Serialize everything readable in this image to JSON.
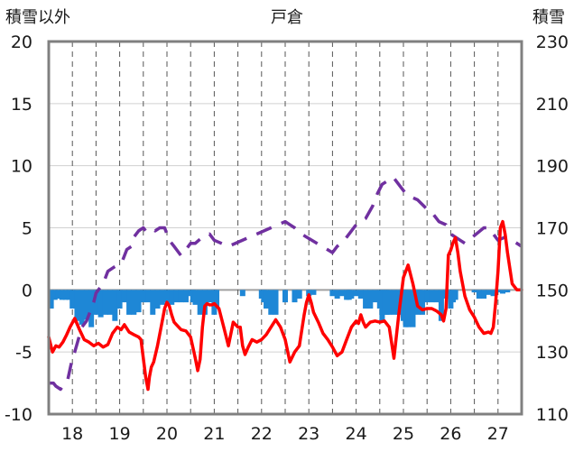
{
  "chart_data": {
    "type": "line",
    "title": "戸倉",
    "ylabel_left": "積雪以外",
    "ylabel_right": "積雪",
    "x_ticks": [
      "18",
      "19",
      "20",
      "21",
      "22",
      "23",
      "24",
      "25",
      "26",
      "27"
    ],
    "xlim": [
      17.5,
      27.5
    ],
    "ylim_left": [
      -10,
      20
    ],
    "ylim_right": [
      110,
      230
    ],
    "y_ticks_left": [
      "-10",
      "-5",
      "0",
      "5",
      "10",
      "15",
      "20"
    ],
    "y_ticks_right": [
      "110",
      "130",
      "150",
      "170",
      "190",
      "210",
      "230"
    ],
    "grid": {
      "vertical": "dashed",
      "horizontal": "solid",
      "day_boundaries": "dashed"
    },
    "colors": {
      "temperature": "#ff0000",
      "snow_depth": "#7030a0",
      "precipitation": "#1e87d6",
      "zero_line": "#a0a0a0",
      "frame": "#808080"
    },
    "series": [
      {
        "axis": "left",
        "style": "line",
        "x": [
          17.5,
          17.58,
          17.65,
          17.72,
          17.8,
          17.88,
          17.95,
          18.05,
          18.15,
          18.25,
          18.35,
          18.45,
          18.55,
          18.65,
          18.75,
          18.85,
          18.95,
          19.03,
          19.1,
          19.2,
          19.3,
          19.4,
          19.45,
          19.5,
          19.55,
          19.6,
          19.63,
          19.67,
          19.72,
          19.8,
          19.9,
          19.95,
          20.0,
          20.05,
          20.1,
          20.15,
          20.2,
          20.3,
          20.4,
          20.5,
          20.6,
          20.65,
          20.7,
          20.75,
          20.8,
          20.85,
          20.9,
          20.95,
          21.0,
          21.1,
          21.2,
          21.3,
          21.4,
          21.5,
          21.55,
          21.6,
          21.65,
          21.72,
          21.8,
          21.9,
          22.0,
          22.1,
          22.2,
          22.3,
          22.4,
          22.5,
          22.6,
          22.7,
          22.8,
          22.9,
          22.95,
          23.0,
          23.05,
          23.1,
          23.2,
          23.3,
          23.4,
          23.5,
          23.6,
          23.7,
          23.8,
          23.9,
          24.0,
          24.05,
          24.1,
          24.15,
          24.2,
          24.3,
          24.4,
          24.5,
          24.6,
          24.7,
          24.8,
          24.9,
          25.0,
          25.1,
          25.2,
          25.3,
          25.4,
          25.5,
          25.6,
          25.7,
          25.8,
          25.85,
          25.9,
          25.95,
          26.0,
          26.05,
          26.1,
          26.15,
          26.2,
          26.3,
          26.4,
          26.5,
          26.6,
          26.7,
          26.8,
          26.85,
          26.9,
          26.95,
          27.0,
          27.05,
          27.1,
          27.15,
          27.2,
          27.3,
          27.4,
          27.5
        ],
        "y": [
          -3.8,
          -5.0,
          -4.5,
          -4.6,
          -4.2,
          -3.6,
          -3.0,
          -2.3,
          -3.2,
          -4.0,
          -4.2,
          -4.5,
          -4.3,
          -4.6,
          -4.4,
          -3.5,
          -3.0,
          -3.2,
          -2.8,
          -3.4,
          -3.6,
          -3.8,
          -4.0,
          -5.5,
          -7.0,
          -8.0,
          -7.0,
          -6.2,
          -5.8,
          -4.5,
          -2.5,
          -1.5,
          -1.0,
          -1.3,
          -2.0,
          -2.6,
          -2.8,
          -3.2,
          -3.3,
          -3.8,
          -5.5,
          -6.5,
          -5.6,
          -3.0,
          -1.3,
          -1.1,
          -1.2,
          -1.2,
          -1.1,
          -1.5,
          -3.0,
          -4.5,
          -2.6,
          -3.0,
          -3.0,
          -4.5,
          -5.2,
          -4.6,
          -4.0,
          -4.2,
          -4.0,
          -3.6,
          -3.0,
          -2.4,
          -3.0,
          -4.0,
          -5.8,
          -5.0,
          -4.5,
          -2.0,
          -1.0,
          -0.4,
          -1.0,
          -1.8,
          -2.6,
          -3.5,
          -4.0,
          -4.6,
          -5.3,
          -5.0,
          -4.0,
          -3.0,
          -2.5,
          -2.7,
          -2.0,
          -2.6,
          -3.0,
          -2.6,
          -2.5,
          -2.6,
          -2.5,
          -3.0,
          -5.5,
          -2.0,
          1.0,
          2.0,
          0.5,
          -1.3,
          -1.6,
          -1.5,
          -1.5,
          -1.7,
          -2.0,
          -2.5,
          -1.5,
          2.8,
          3.2,
          3.8,
          4.2,
          3.0,
          1.5,
          -0.5,
          -1.6,
          -2.2,
          -3.0,
          -3.5,
          -3.4,
          -3.5,
          -3.0,
          -1.0,
          1.5,
          5.0,
          5.5,
          4.5,
          3.0,
          0.5,
          0.0,
          0.0
        ]
      },
      {
        "axis": "right",
        "style": "dashed",
        "x": [
          17.5,
          17.6,
          17.65,
          17.75,
          17.85,
          17.9,
          18.0,
          18.05,
          18.2,
          18.3,
          18.45,
          18.5,
          18.55,
          18.65,
          18.75,
          18.85,
          18.95,
          19.05,
          19.15,
          19.25,
          19.3,
          19.4,
          19.5,
          19.55,
          19.65,
          19.75,
          19.85,
          19.95,
          20.05,
          20.15,
          20.3,
          20.5,
          20.6,
          20.75,
          20.9,
          21.0,
          21.15,
          21.3,
          22.5,
          22.6,
          22.7,
          22.85,
          22.95,
          23.5,
          23.6,
          23.75,
          23.9,
          24.0,
          24.2,
          24.35,
          24.45,
          24.55,
          24.65,
          24.7,
          24.8,
          24.95,
          25.05,
          25.15,
          25.3,
          25.5,
          25.6,
          25.75,
          25.9,
          26.0,
          26.1,
          26.2,
          26.3,
          26.7,
          26.8,
          26.9,
          27.0,
          27.15,
          27.3,
          27.5
        ],
        "y": [
          120,
          120,
          119,
          118,
          120,
          121,
          128,
          130,
          138,
          140,
          146,
          149,
          150,
          152,
          156,
          157,
          158,
          159,
          163,
          164,
          167,
          169,
          170,
          169,
          170,
          169,
          170,
          170,
          166,
          164,
          161,
          165,
          165,
          167,
          168,
          166,
          165,
          164,
          172,
          171,
          170,
          168,
          167,
          162,
          164,
          166,
          169,
          171,
          173,
          177,
          181,
          184,
          185,
          186,
          186,
          183,
          181,
          180,
          179,
          176,
          175,
          172,
          171,
          168,
          167,
          166,
          165,
          170,
          170,
          168,
          166,
          167,
          166,
          164
        ]
      },
      {
        "axis": "left",
        "style": "bar",
        "x": [
          17.55,
          17.63,
          17.7,
          17.78,
          17.86,
          17.93,
          18.0,
          18.1,
          18.2,
          18.3,
          18.4,
          18.5,
          18.6,
          18.7,
          18.8,
          18.9,
          19.0,
          19.1,
          19.2,
          19.3,
          19.4,
          19.5,
          19.6,
          19.7,
          19.8,
          19.9,
          20.0,
          20.1,
          20.2,
          20.3,
          20.4,
          20.5,
          20.55,
          20.6,
          20.7,
          20.8,
          20.9,
          21.0,
          21.05,
          21.6,
          22.0,
          22.05,
          22.1,
          22.2,
          22.3,
          22.5,
          22.7,
          22.8,
          23.0,
          23.1,
          23.5,
          23.6,
          23.7,
          23.8,
          23.85,
          23.9,
          24.0,
          24.1,
          24.2,
          24.3,
          24.4,
          24.5,
          24.55,
          24.6,
          24.65,
          24.7,
          24.8,
          24.9,
          25.0,
          25.05,
          25.1,
          25.2,
          25.3,
          25.35,
          25.4,
          25.5,
          25.6,
          25.7,
          25.8,
          25.9,
          26.0,
          26.05,
          26.1,
          26.5,
          26.6,
          26.7,
          26.8,
          26.9,
          27.0,
          27.1,
          27.2
        ],
        "y": [
          -1.5,
          -0.8,
          -0.7,
          -0.8,
          -0.8,
          -0.8,
          -1.5,
          -2.5,
          -2.8,
          -2.4,
          -3.0,
          -2.0,
          -2.2,
          -2.0,
          -2.0,
          -2.5,
          -1.5,
          -1.0,
          -2.0,
          -2.0,
          -1.8,
          -1.0,
          -1.0,
          -2.0,
          -1.5,
          -1.2,
          -1.0,
          -1.2,
          -1.0,
          -1.0,
          -1.0,
          -0.5,
          -1.0,
          -1.2,
          -2.0,
          -2.0,
          -1.0,
          -2.0,
          -1.5,
          -0.5,
          -0.7,
          -1.0,
          -1.5,
          -2.0,
          -2.0,
          -1.0,
          -1.0,
          -0.7,
          -0.5,
          -0.4,
          -0.5,
          -0.7,
          -0.5,
          -0.8,
          -0.8,
          -0.7,
          -0.5,
          -0.7,
          -1.5,
          -1.5,
          -1.0,
          -1.5,
          -2.5,
          -2.0,
          -2.0,
          -2.0,
          -2.0,
          -2.0,
          -2.5,
          -3.0,
          -3.0,
          -3.0,
          -2.0,
          -1.0,
          -2.0,
          -1.0,
          -1.0,
          -1.0,
          -2.5,
          -0.7,
          -1.5,
          -1.0,
          -0.8,
          -0.2,
          -0.7,
          -0.7,
          -0.4,
          -0.5,
          -0.2,
          -0.3,
          -0.2
        ]
      }
    ]
  }
}
